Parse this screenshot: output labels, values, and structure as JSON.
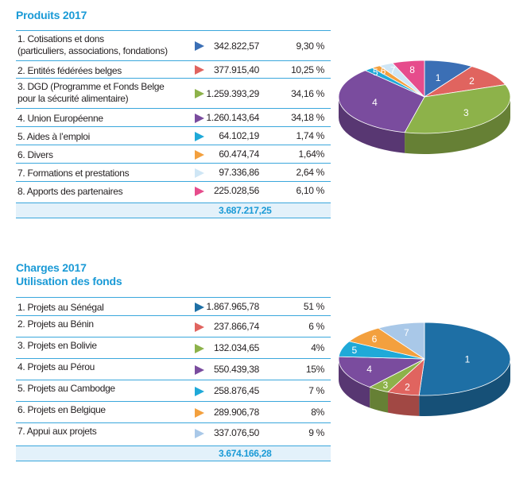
{
  "chart_data": [
    {
      "type": "pie",
      "title": "Produits 2017",
      "rows": [
        {
          "label": "1. Cotisations et dons\n(particuliers, associations, fondations)",
          "amount": "342.822,57",
          "percent": "9,30 %",
          "value": 9.3,
          "color": "#3b6fb5",
          "slice": "1"
        },
        {
          "label": "2. Entités fédérées belges",
          "amount": "377.915,40",
          "percent": "10,25 %",
          "value": 10.25,
          "color": "#e0645f",
          "slice": "2"
        },
        {
          "label": "3. DGD (Programme et Fonds Belge\n     pour la sécurité alimentaire)",
          "amount": "1.259.393,29",
          "percent": "34,16 %",
          "value": 34.16,
          "color": "#8db24a",
          "slice": "3"
        },
        {
          "label": "4. Union Européenne",
          "amount": "1.260.143,64",
          "percent": "34,18 %",
          "value": 34.18,
          "color": "#7a4c9e",
          "slice": "4"
        },
        {
          "label": "5. Aides à l’emploi",
          "amount": "64.102,19",
          "percent": "1,74 %",
          "value": 1.74,
          "color": "#1fa9d8",
          "slice": "5"
        },
        {
          "label": "6. Divers",
          "amount": "60.474,74",
          "percent": "1,64%",
          "value": 1.64,
          "color": "#f3a03e",
          "slice": "6"
        },
        {
          "label": "7. Formations et prestations",
          "amount": "97.336,86",
          "percent": "2,64 %",
          "value": 2.64,
          "color": "#cfe6f5",
          "slice": "7"
        },
        {
          "label": "8. Apports des partenaires",
          "amount": "225.028,56",
          "percent": "6,10 %",
          "value": 6.1,
          "color": "#e64c8c",
          "slice": "8"
        }
      ],
      "total": "3.687.217,25"
    },
    {
      "type": "pie",
      "title": "Charges 2017",
      "subtitle": "Utilisation des fonds",
      "rows": [
        {
          "label": "1. Projets au Sénégal",
          "amount": "1.867.965,78",
          "percent": "51 %",
          "value": 51,
          "color": "#1e6fa5",
          "slice": "1"
        },
        {
          "label": "2. Projets au Bénin",
          "amount": "237.866,74",
          "percent": "6 %",
          "value": 6,
          "color": "#e0645f",
          "slice": "2"
        },
        {
          "label": "3. Projets en Bolivie",
          "amount": "132.034,65",
          "percent": "4%",
          "value": 4,
          "color": "#8db24a",
          "slice": "3"
        },
        {
          "label": "4. Projets au Pérou",
          "amount": "550.439,38",
          "percent": "15%",
          "value": 15,
          "color": "#7a4c9e",
          "slice": "4"
        },
        {
          "label": "5. Projets au Cambodge",
          "amount": "258.876,45",
          "percent": "7 %",
          "value": 7,
          "color": "#1fa9d8",
          "slice": "5"
        },
        {
          "label": "6. Projets en Belgique",
          "amount": "289.906,78",
          "percent": "8%",
          "value": 8,
          "color": "#f3a03e",
          "slice": "6"
        },
        {
          "label": "7. Appui aux projets",
          "amount": "337.076,50",
          "percent": "9 %",
          "value": 9,
          "color": "#a9c8e8",
          "slice": "7"
        }
      ],
      "total": "3.674.166,28"
    }
  ]
}
